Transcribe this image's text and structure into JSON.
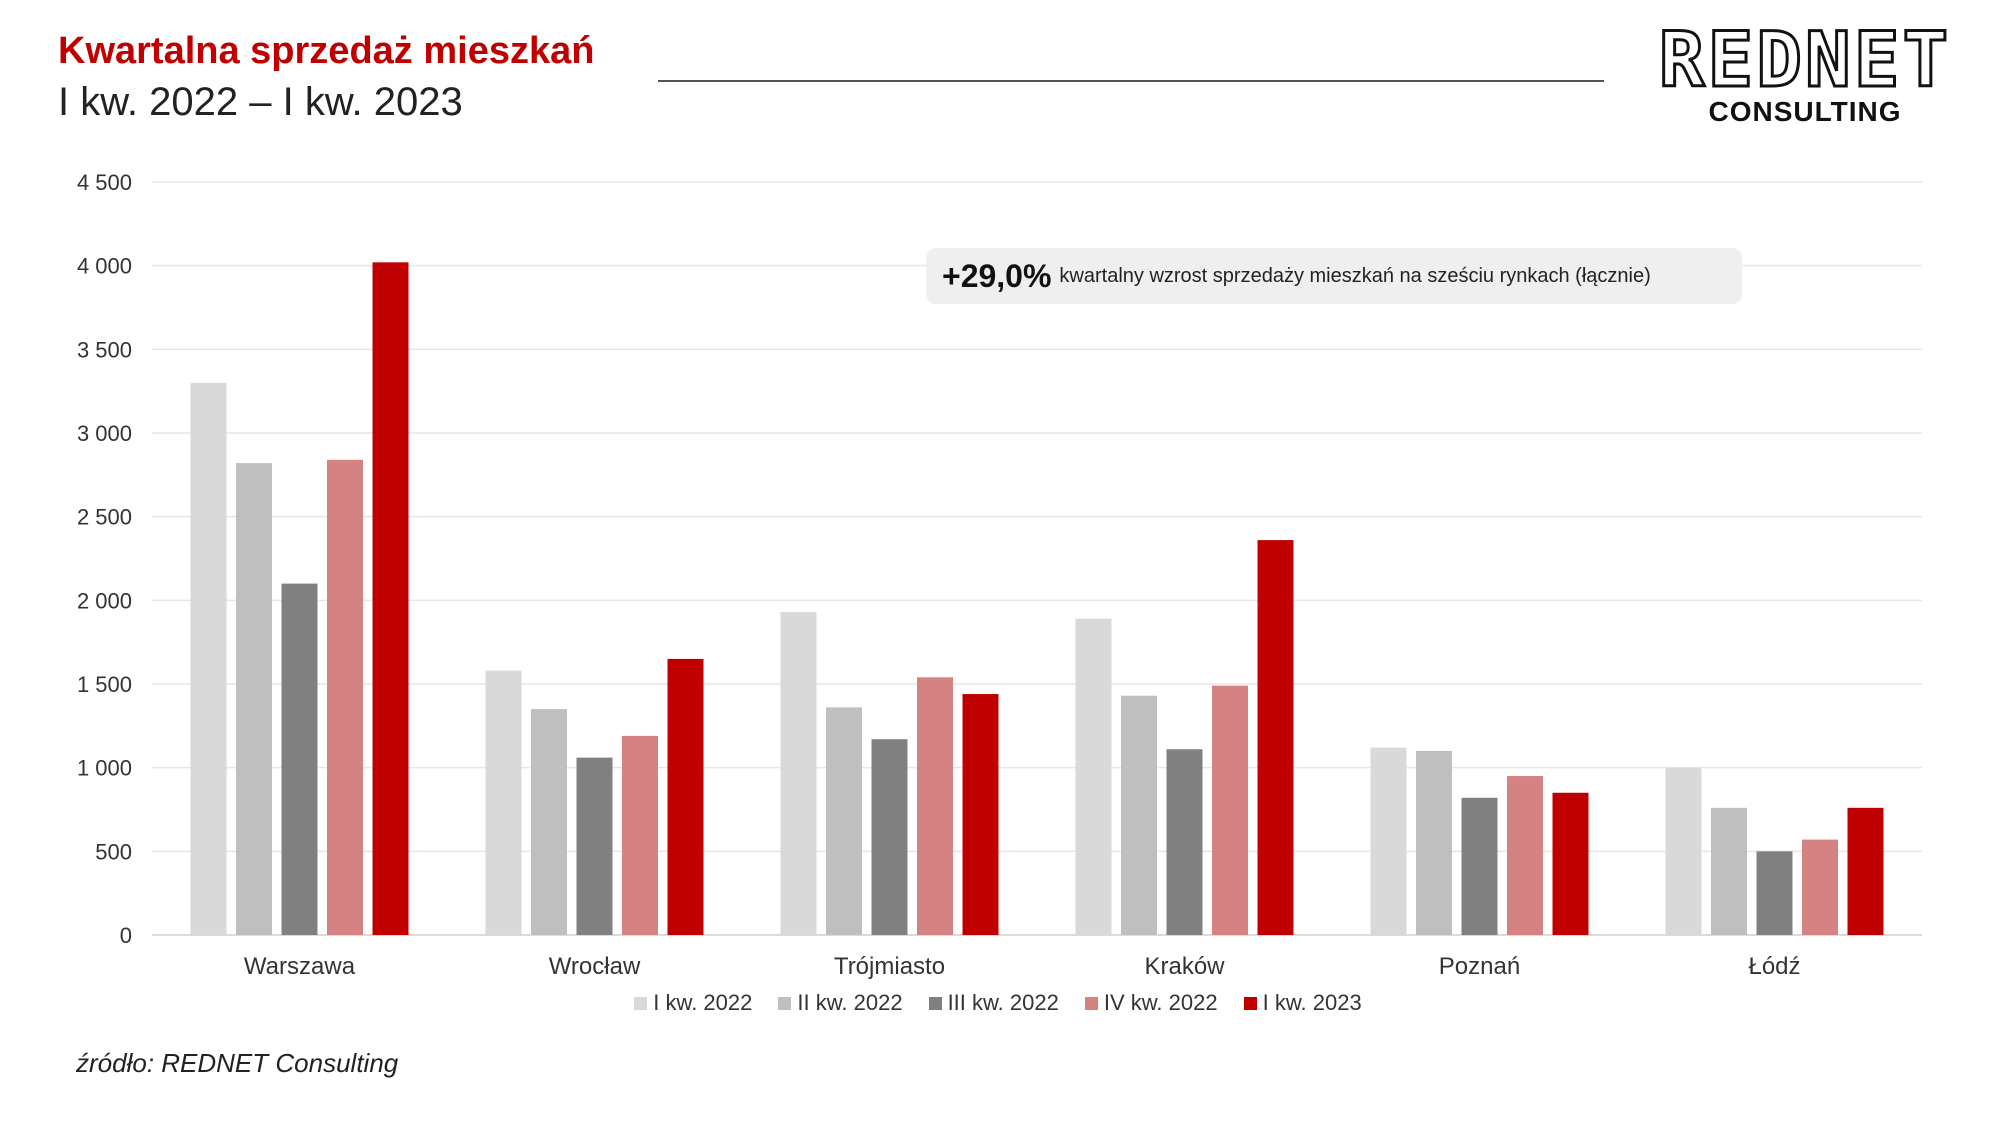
{
  "header": {
    "title": "Kwartalna sprzedaż mieszkań",
    "subtitle": "I kw. 2022 – I kw. 2023"
  },
  "logo": {
    "name": "REDNET",
    "sub": "CONSULTING"
  },
  "callout": {
    "value": "+29,0%",
    "text": "kwartalny wzrost sprzedaży mieszkań na sześciu rynkach (łącznie)"
  },
  "source": "źródło: REDNET Consulting",
  "colors": {
    "I kw. 2022": "#d9d9d9",
    "II kw. 2022": "#bfbfbf",
    "III kw. 2022": "#808080",
    "IV kw. 2022": "#d48282",
    "I kw. 2023": "#c00000",
    "grid": "#e6e6e6"
  },
  "chart_data": {
    "type": "bar",
    "categories": [
      "Warszawa",
      "Wrocław",
      "Trójmiasto",
      "Kraków",
      "Poznań",
      "Łódź"
    ],
    "series": [
      {
        "name": "I kw. 2022",
        "values": [
          3300,
          1580,
          1930,
          1890,
          1120,
          1000
        ]
      },
      {
        "name": "II kw. 2022",
        "values": [
          2820,
          1350,
          1360,
          1430,
          1100,
          760
        ]
      },
      {
        "name": "III kw. 2022",
        "values": [
          2100,
          1060,
          1170,
          1110,
          820,
          500
        ]
      },
      {
        "name": "IV kw. 2022",
        "values": [
          2840,
          1190,
          1540,
          1490,
          950,
          570
        ]
      },
      {
        "name": "I kw. 2023",
        "values": [
          4020,
          1650,
          1440,
          2360,
          850,
          760
        ]
      }
    ],
    "ylim": [
      0,
      4500
    ],
    "yticks": [
      0,
      500,
      1000,
      1500,
      2000,
      2500,
      3000,
      3500,
      4000,
      4500
    ],
    "ytick_labels": [
      "0",
      "500",
      "1 000",
      "1 500",
      "2 000",
      "2 500",
      "3 000",
      "3 500",
      "4 000",
      "4 500"
    ],
    "grid": true,
    "legend": "bottom"
  }
}
